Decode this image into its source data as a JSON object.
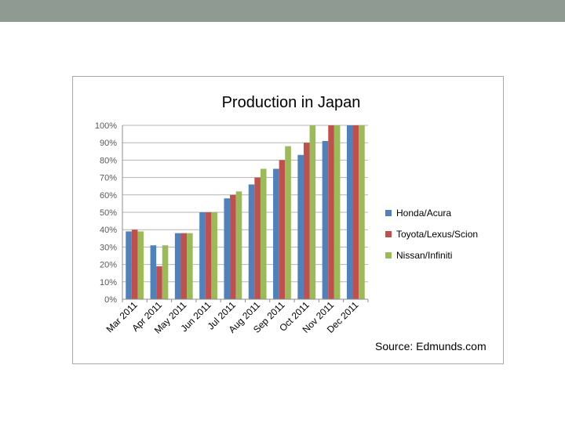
{
  "chart_data": {
    "type": "bar",
    "title": "Production in Japan",
    "categories": [
      "Mar 2011",
      "Apr 2011",
      "May 2011",
      "Jun 2011",
      "Jul 2011",
      "Aug 2011",
      "Sep 2011",
      "Oct 2011",
      "Nov 2011",
      "Dec 2011"
    ],
    "series": [
      {
        "name": "Honda/Acura",
        "color": "#4f81bd",
        "values": [
          39,
          31,
          38,
          50,
          58,
          66,
          75,
          83,
          91,
          100
        ]
      },
      {
        "name": "Toyota/Lexus/Scion",
        "color": "#c0504d",
        "values": [
          40,
          19,
          38,
          50,
          60,
          70,
          80,
          90,
          100,
          100
        ]
      },
      {
        "name": "Nissan/Infiniti",
        "color": "#9bbb59",
        "values": [
          39,
          31,
          38,
          50,
          62,
          75,
          88,
          100,
          100,
          100
        ]
      }
    ],
    "ylim": [
      0,
      100
    ],
    "yticks": [
      "0%",
      "10%",
      "20%",
      "30%",
      "40%",
      "50%",
      "60%",
      "70%",
      "80%",
      "90%",
      "100%"
    ],
    "grid": true,
    "legend": "right",
    "source": "Source: Edmunds.com"
  }
}
